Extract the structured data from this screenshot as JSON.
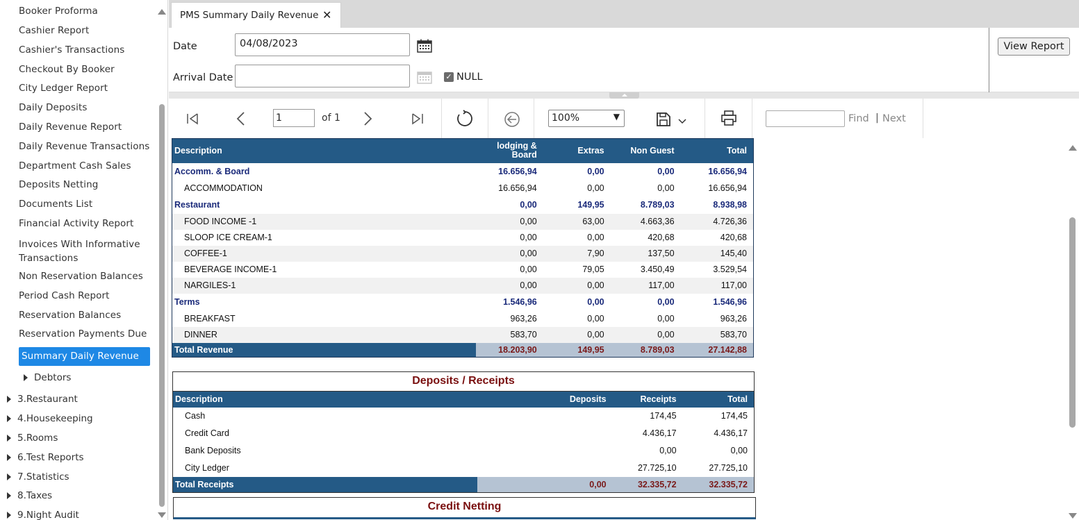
{
  "sidebar": {
    "items": [
      {
        "label": "Booker Proforma"
      },
      {
        "label": "Cashier Report"
      },
      {
        "label": "Cashier's Transactions"
      },
      {
        "label": "Checkout By Booker"
      },
      {
        "label": "City Ledger Report"
      },
      {
        "label": "Daily Deposits"
      },
      {
        "label": "Daily Revenue Report"
      },
      {
        "label": "Daily Revenue Transactions"
      },
      {
        "label": "Department Cash Sales"
      },
      {
        "label": "Deposits Netting"
      },
      {
        "label": "Documents List"
      },
      {
        "label": "Financial Activity Report"
      },
      {
        "label": "Invoices With Informative Transactions"
      },
      {
        "label": "Non Reservation Balances"
      },
      {
        "label": "Period Cash Report"
      },
      {
        "label": "Reservation Balances"
      },
      {
        "label": "Reservation Payments Due"
      },
      {
        "label": "Summary Daily Revenue"
      }
    ],
    "subgroup": "Debtors",
    "groups": [
      "3.Restaurant",
      "4.Housekeeping",
      "5.Rooms",
      "6.Test Reports",
      "7.Statistics",
      "8.Taxes",
      "9.Night Audit"
    ]
  },
  "tab": {
    "title": "PMS Summary Daily Revenue",
    "close_icon": "close-icon"
  },
  "params": {
    "date_label": "Date",
    "date_value": "04/08/2023",
    "arrival_label": "Arrival Date",
    "arrival_value": "",
    "null_label": "NULL",
    "null_checked": true,
    "view_report": "View Report"
  },
  "toolbar": {
    "page": "1",
    "of_label": "of 1",
    "zoom": "100%",
    "find_label": "Find",
    "separator": "|",
    "next_label": "Next"
  },
  "revenue": {
    "headers": [
      "Description",
      "lodging & Board",
      "Extras",
      "Non Guest",
      "Total"
    ],
    "rows": [
      {
        "type": "grp",
        "desc": "Accomm.  & Board",
        "v": [
          "16.656,94",
          "0,00",
          "0,00",
          "16.656,94"
        ]
      },
      {
        "type": "item",
        "desc": "ACCOMMODATION",
        "v": [
          "16.656,94",
          "0,00",
          "0,00",
          "16.656,94"
        ]
      },
      {
        "type": "grp",
        "desc": "Restaurant",
        "v": [
          "0,00",
          "149,95",
          "8.789,03",
          "8.938,98"
        ]
      },
      {
        "type": "alt",
        "desc": "FOOD INCOME -1",
        "v": [
          "0,00",
          "63,00",
          "4.663,36",
          "4.726,36"
        ]
      },
      {
        "type": "item",
        "desc": "SLOOP ICE CREAM-1",
        "v": [
          "0,00",
          "0,00",
          "420,68",
          "420,68"
        ]
      },
      {
        "type": "alt",
        "desc": "COFFEE-1",
        "v": [
          "0,00",
          "7,90",
          "137,50",
          "145,40"
        ]
      },
      {
        "type": "item",
        "desc": "BEVERAGE INCOME-1",
        "v": [
          "0,00",
          "79,05",
          "3.450,49",
          "3.529,54"
        ]
      },
      {
        "type": "alt",
        "desc": "NARGILES-1",
        "v": [
          "0,00",
          "0,00",
          "117,00",
          "117,00"
        ]
      },
      {
        "type": "grp",
        "desc": "Terms",
        "v": [
          "1.546,96",
          "0,00",
          "0,00",
          "1.546,96"
        ]
      },
      {
        "type": "item",
        "desc": "BREAKFAST",
        "v": [
          "963,26",
          "0,00",
          "0,00",
          "963,26"
        ]
      },
      {
        "type": "alt",
        "desc": "DINNER",
        "v": [
          "583,70",
          "0,00",
          "0,00",
          "583,70"
        ]
      }
    ],
    "total": {
      "desc": "Total Revenue",
      "v": [
        "18.203,90",
        "149,95",
        "8.789,03",
        "27.142,88"
      ]
    }
  },
  "deposits": {
    "title": "Deposits / Receipts",
    "headers": [
      "Description",
      "Deposits",
      "Receipts",
      "Total"
    ],
    "rows": [
      {
        "desc": "Cash",
        "v": [
          "",
          "174,45",
          "174,45"
        ]
      },
      {
        "desc": "Credit Card",
        "v": [
          "",
          "4.436,17",
          "4.436,17"
        ]
      },
      {
        "desc": "Bank Deposits",
        "v": [
          "",
          "0,00",
          "0,00"
        ]
      },
      {
        "desc": "City Ledger",
        "v": [
          "",
          "27.725,10",
          "27.725,10"
        ]
      }
    ],
    "total": {
      "desc": "Total Receipts",
      "v": [
        "0,00",
        "32.335,72",
        "32.335,72"
      ]
    }
  },
  "credit": {
    "title": "Credit Netting"
  },
  "colors": {
    "accent": "#1e88e5",
    "header": "#245a86",
    "total_value": "#7a1a1a",
    "group_text": "#1a2a7a"
  }
}
